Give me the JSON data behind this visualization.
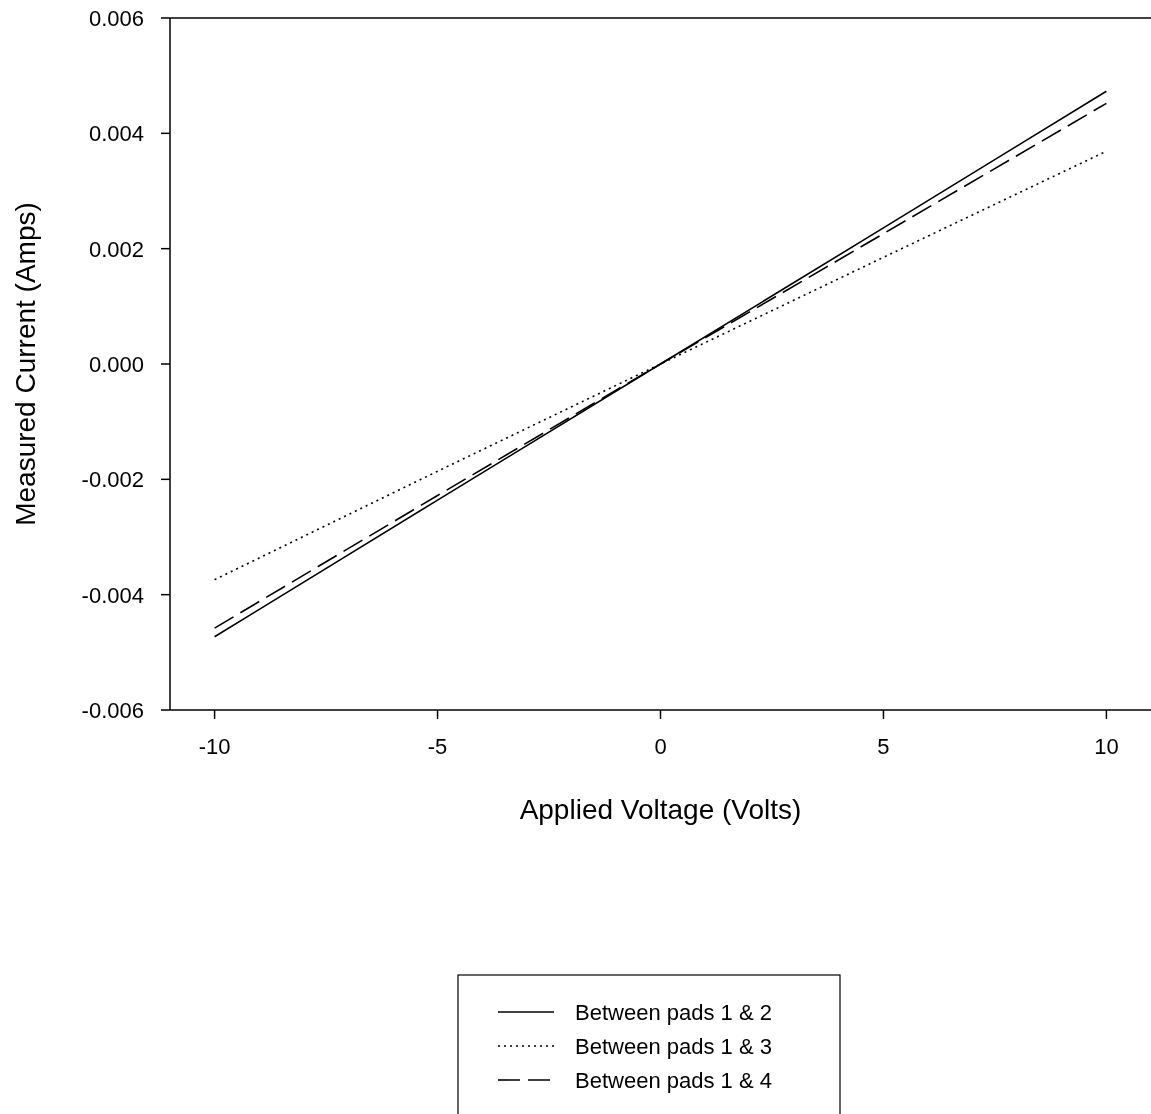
{
  "chart_data": {
    "type": "line",
    "xlabel": "Applied Voltage (Volts)",
    "ylabel": "Measured Current (Amps)",
    "x": [
      -10,
      -5,
      0,
      5,
      10
    ],
    "xlim": [
      -11,
      11
    ],
    "xticks": [
      -10,
      -5,
      0,
      5,
      10
    ],
    "ylim": [
      -0.006,
      0.006
    ],
    "yticks": [
      {
        "value": -0.006,
        "label": "-0.006"
      },
      {
        "value": -0.004,
        "label": "-0.004"
      },
      {
        "value": -0.002,
        "label": "-0.002"
      },
      {
        "value": 0,
        "label": "0.000"
      },
      {
        "value": 0.002,
        "label": "0.002"
      },
      {
        "value": 0.004,
        "label": "0.004"
      },
      {
        "value": 0.006,
        "label": "0.006"
      }
    ],
    "grid": false,
    "legend": "bottom",
    "marker": "none",
    "series": [
      {
        "name": "Between pads 1 & 2",
        "color": "#000000",
        "line_style": "solid",
        "values": [
          -0.00473,
          -0.00236,
          0,
          0.00236,
          0.00473
        ]
      },
      {
        "name": "Between pads 1 & 3",
        "color": "#000000",
        "line_style": "dotted",
        "values": [
          -0.00374,
          -0.00186,
          0,
          0.00185,
          0.00369
        ]
      },
      {
        "name": "Between pads 1 & 4",
        "color": "#000000",
        "line_style": "dashed",
        "values": [
          -0.00458,
          -0.00228,
          0,
          0.00226,
          0.00452
        ]
      }
    ]
  }
}
